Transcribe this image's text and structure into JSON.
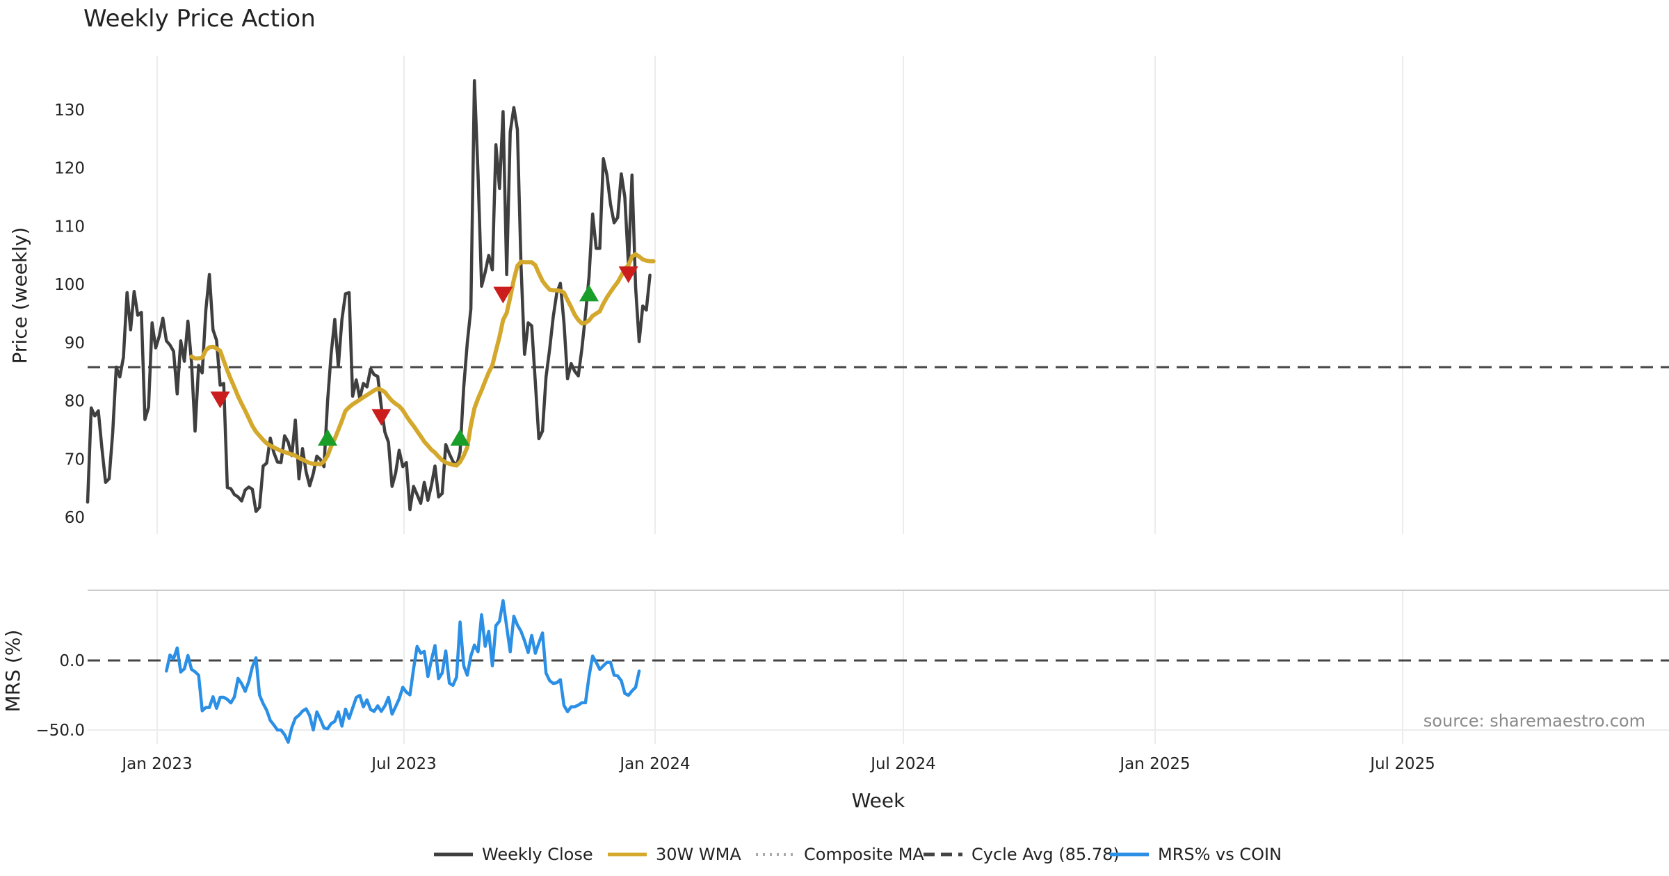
{
  "chart_data": {
    "type": "line",
    "title": "Weekly Price Action",
    "xlabel": "Week",
    "source": "source: sharemaestro.com",
    "x_ticks": [
      "Jan 2023",
      "Jul 2023",
      "Jan 2024",
      "Jul 2024",
      "Jan 2025",
      "Jul 2025"
    ],
    "price_panel": {
      "ylabel": "Price (weekly)",
      "ylim": [
        57,
        140
      ],
      "y_ticks": [
        60,
        70,
        80,
        90,
        100,
        110,
        120,
        130
      ],
      "cycle_avg": 85.78,
      "series": [
        {
          "name": "Weekly Close",
          "color": "#3f3f3f",
          "values": [
            62.6,
            78.8,
            77.4,
            78.3,
            71.8,
            66.0,
            66.6,
            74.6,
            85.8,
            84.1,
            87.5,
            98.6,
            92.2,
            98.8,
            94.7,
            95.2,
            76.8,
            78.9,
            93.4,
            89.1,
            91.1,
            94.2,
            90.3,
            89.6,
            88.5,
            81.2,
            90.3,
            86.8,
            93.7,
            86.6,
            74.8,
            86.1,
            84.8,
            95.6,
            101.7,
            92.2,
            90.4,
            82.7,
            83.0,
            65.1,
            64.9,
            63.9,
            63.5,
            62.8,
            64.7,
            65.2,
            64.8,
            61.0,
            61.7,
            68.8,
            69.3,
            73.6,
            71.1,
            69.5,
            69.4,
            74.0,
            72.9,
            70.6,
            76.7,
            66.6,
            71.8,
            67.8,
            65.4,
            67.5,
            70.5,
            69.9,
            68.7,
            80.0,
            88.1,
            94.0,
            85.9,
            94.0,
            98.4,
            98.6,
            80.8,
            83.6,
            80.4,
            83.0,
            82.4,
            85.5,
            84.5,
            84.2,
            79.0,
            74.6,
            72.9,
            65.3,
            67.6,
            71.5,
            68.7,
            69.4,
            61.3,
            65.3,
            63.9,
            62.4,
            66.0,
            62.9,
            65.5,
            68.8,
            63.5,
            64.1,
            72.5,
            70.9,
            69.6,
            68.8,
            71.2,
            82.3,
            89.9,
            95.8,
            135.0,
            119.0,
            99.7,
            102.1,
            105.0,
            102.5,
            124.0,
            116.5,
            129.7,
            101.7,
            126.2,
            130.4,
            126.6,
            103.4,
            88.0,
            93.4,
            92.9,
            83.2,
            73.5,
            74.8,
            84.1,
            88.9,
            94.4,
            98.6,
            100.2,
            93.4,
            83.8,
            86.4,
            85.1,
            84.3,
            88.9,
            94.8,
            101.3,
            112.1,
            106.2,
            106.2,
            121.6,
            118.8,
            113.8,
            110.6,
            111.5,
            119.0,
            115.0,
            103.3,
            118.8,
            99.5,
            90.2,
            96.3,
            95.6,
            101.6
          ]
        },
        {
          "name": "30W WMA",
          "color": "#d4a82c",
          "values": [
            null,
            null,
            null,
            null,
            null,
            null,
            null,
            null,
            null,
            null,
            null,
            null,
            null,
            null,
            null,
            null,
            null,
            null,
            null,
            null,
            null,
            null,
            null,
            null,
            null,
            null,
            null,
            null,
            null,
            87.6,
            87.3,
            87.3,
            87.4,
            88.7,
            89.2,
            89.3,
            89.0,
            88.6,
            86.9,
            85.2,
            83.7,
            82.3,
            80.8,
            79.5,
            78.3,
            77.0,
            75.7,
            74.7,
            74.0,
            73.3,
            72.7,
            72.3,
            72.0,
            71.7,
            71.4,
            71.2,
            71.0,
            70.8,
            70.6,
            70.2,
            69.9,
            69.6,
            69.3,
            69.2,
            69.2,
            69.1,
            69.6,
            70.6,
            72.2,
            73.5,
            75.0,
            76.6,
            78.3,
            78.9,
            79.4,
            79.8,
            80.2,
            80.6,
            81.0,
            81.4,
            81.8,
            82.1,
            81.9,
            81.5,
            80.7,
            80.0,
            79.5,
            79.1,
            78.4,
            77.4,
            76.5,
            75.7,
            74.8,
            73.9,
            73.0,
            72.3,
            71.6,
            71.1,
            70.4,
            69.8,
            69.4,
            69.2,
            69.0,
            68.9,
            69.5,
            70.6,
            72.0,
            75.8,
            78.7,
            80.4,
            81.8,
            83.4,
            84.9,
            86.1,
            88.6,
            91.0,
            93.9,
            95.1,
            97.8,
            100.8,
            103.2,
            103.9,
            103.8,
            103.8,
            103.8,
            103.3,
            101.9,
            100.6,
            99.8,
            99.1,
            99.0,
            99.0,
            98.9,
            98.6,
            97.3,
            96.1,
            94.8,
            93.9,
            93.3,
            93.4,
            93.8,
            94.6,
            95.0,
            95.4,
            96.7,
            97.8,
            98.7,
            99.6,
            100.4,
            101.5,
            102.7,
            103.3,
            104.8,
            105.2,
            104.8,
            104.3,
            104.1,
            104.0,
            104.0
          ]
        },
        {
          "name": "Composite MA",
          "color": "#aaaaaa",
          "values": [
            null,
            null,
            null,
            null,
            null,
            null,
            null,
            null,
            null,
            null,
            null,
            null,
            null,
            null,
            null,
            null,
            null,
            null,
            null,
            null,
            null,
            null,
            null,
            null,
            null,
            null,
            null,
            null,
            null,
            null,
            null,
            null,
            null,
            null,
            null,
            null,
            null,
            null,
            null,
            null,
            null,
            null,
            null,
            null,
            null,
            null,
            null,
            null,
            null,
            null,
            null,
            null,
            null,
            null,
            null,
            null,
            null,
            null,
            null,
            null,
            null,
            null,
            null,
            null,
            null,
            null,
            null,
            null,
            null,
            null,
            null,
            null,
            null,
            null,
            null,
            null,
            null,
            null,
            null,
            null,
            null,
            null,
            null,
            null,
            null,
            null,
            null,
            null,
            null,
            null,
            null,
            null,
            null,
            null,
            null,
            null,
            null,
            null,
            null,
            null,
            null,
            null,
            null,
            null,
            null,
            null,
            null,
            null,
            null,
            null,
            null,
            null,
            null,
            null,
            null,
            null,
            null,
            null,
            null,
            null,
            null,
            null,
            null,
            null,
            null,
            null,
            null,
            null,
            null,
            null,
            null,
            null,
            null,
            null,
            null,
            null,
            null,
            null,
            null,
            null,
            null,
            null,
            null,
            null,
            null,
            null,
            null,
            null,
            null,
            null,
            null,
            null,
            null,
            null,
            null,
            null,
            null,
            null,
            null
          ]
        }
      ],
      "signals_buy": [
        [
          67,
          73.5
        ],
        [
          104,
          73.5
        ],
        [
          140,
          98.3
        ]
      ],
      "signals_sell": [
        [
          37,
          80.4
        ],
        [
          82,
          77.4
        ],
        [
          116,
          98.4
        ],
        [
          151,
          101.9
        ]
      ]
    },
    "mrs_panel": {
      "ylabel": "MRS (%)",
      "ylim": [
        -65,
        50
      ],
      "y_ticks": [
        0.0,
        -50.0
      ],
      "y_tick_labels": [
        "0.0",
        "−50.0"
      ],
      "series": [
        {
          "name": "MRS% vs COIN",
          "color": "#2a8fe5",
          "start_index": 22,
          "values": [
            -7.6,
            3.9,
            1.2,
            9.0,
            -8.3,
            -6.0,
            3.6,
            -6.4,
            -8.1,
            -10.6,
            -36.2,
            -33.8,
            -33.8,
            -26.1,
            -34.4,
            -26.5,
            -26.5,
            -28.0,
            -30.5,
            -26.2,
            -12.9,
            -16.7,
            -22.2,
            -15.1,
            -4.6,
            1.9,
            -24.9,
            -31.0,
            -35.8,
            -43.1,
            -46.4,
            -50.0,
            -50.0,
            -53.4,
            -58.8,
            -48.3,
            -41.5,
            -39.4,
            -36.4,
            -34.8,
            -39.6,
            -50.0,
            -37.0,
            -42.4,
            -48.6,
            -49.1,
            -45.4,
            -43.8,
            -36.9,
            -47.2,
            -35.0,
            -41.7,
            -34.2,
            -26.6,
            -25.1,
            -33.3,
            -28.3,
            -35.3,
            -36.6,
            -32.6,
            -36.6,
            -32.6,
            -26.5,
            -38.6,
            -33.2,
            -27.6,
            -19.3,
            -22.8,
            -24.7,
            -6.0,
            10.1,
            5.2,
            6.5,
            -11.5,
            0.5,
            10.7,
            -13.1,
            -9.0,
            6.8,
            -16.3,
            -17.9,
            -12.0,
            27.7,
            -3.8,
            -10.6,
            3.2,
            11.1,
            6.3,
            32.9,
            10.2,
            21.0,
            -3.8,
            25.1,
            28.3,
            43.0,
            24.3,
            6.3,
            31.8,
            25.5,
            21.0,
            14.2,
            5.7,
            18.0,
            5.2,
            12.7,
            19.8,
            -9.1,
            -14.5,
            -16.5,
            -16.0,
            -13.8,
            -32.3,
            -36.8,
            -33.3,
            -33.3,
            -32.1,
            -30.4,
            -30.4,
            -11.5,
            3.2,
            -1.3,
            -6.4,
            -3.8,
            -1.3,
            -1.3,
            -10.6,
            -11.1,
            -14.5,
            -23.7,
            -25.1,
            -21.9,
            -19.3,
            -7.6
          ]
        }
      ]
    },
    "legend": [
      {
        "label": "Weekly Close",
        "color": "#3f3f3f",
        "style": "solid"
      },
      {
        "label": "30W WMA",
        "color": "#d4a82c",
        "style": "solid"
      },
      {
        "label": "Composite MA",
        "color": "#aaaaaa",
        "style": "dotted"
      },
      {
        "label": "Cycle Avg (85.78)",
        "color": "#444444",
        "style": "dashed"
      },
      {
        "label": "MRS% vs COIN",
        "color": "#2a8fe5",
        "style": "solid"
      }
    ],
    "marker_colors": {
      "buy": "#1a9e2a",
      "sell": "#cc1d1d"
    }
  }
}
